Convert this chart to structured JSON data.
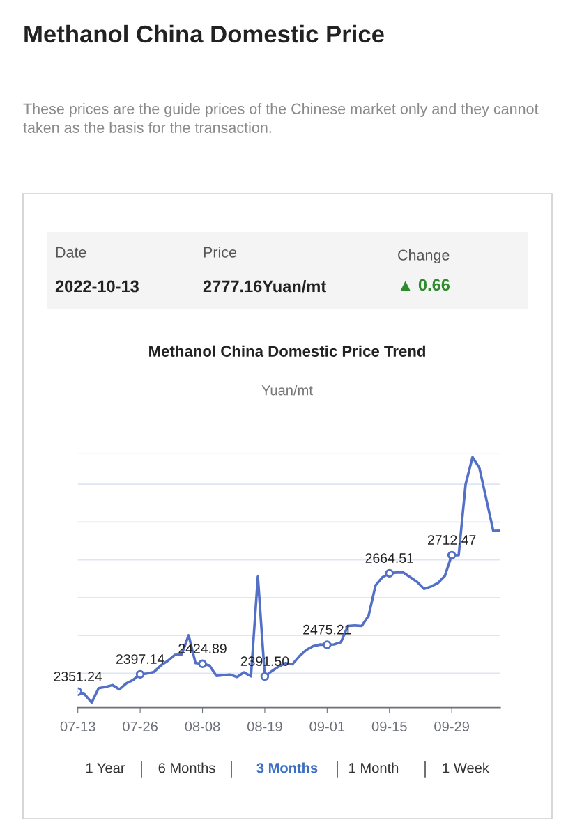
{
  "chart_data": {
    "type": "line",
    "title": "Methanol China Domestic Price",
    "subtitle": "These prices are the guide prices of the Chinese market only and they cannot taken as the basis for the transaction.",
    "ylabel": "Yuan/mt",
    "annotations": [
      "Date",
      "Price",
      "Change",
      "2022-10-13",
      "2777.16Yuan/mt",
      "▲ 0.66",
      "Methanol China Domestic Price Trend",
      "1 Year",
      "6 Months",
      "3 Months",
      "1 Month",
      "1 Week"
    ],
    "categories": [
      "07-13",
      null,
      null,
      null,
      null,
      null,
      null,
      null,
      null,
      "07-26",
      null,
      null,
      null,
      null,
      null,
      null,
      null,
      null,
      "08-08",
      null,
      null,
      null,
      null,
      null,
      null,
      null,
      null,
      "08-19",
      null,
      null,
      null,
      null,
      null,
      null,
      null,
      null,
      "09-01",
      null,
      null,
      null,
      null,
      null,
      null,
      null,
      null,
      "09-15",
      null,
      null,
      null,
      null,
      null,
      null,
      null,
      null,
      "09-29",
      null,
      null,
      null,
      null,
      null,
      null,
      null
    ],
    "series": [
      {
        "color": "#5470c6",
        "values": [
          2351.24,
          2343.9,
          2322.5,
          2360.5,
          2363.6,
          2368.6,
          2357.5,
          2373.4,
          2382.6,
          2397.14,
          2399.2,
          2403.6,
          2420.7,
          2433.1,
          2448.4,
          2449.6,
          2500.5,
          2426.8,
          2424.89,
          2420.7,
          2393.1,
          2394.9,
          2396.2,
          2390.0,
          2402.3,
          2391.8,
          2656.0,
          2391.5,
          2405.4,
          2417.6,
          2426.8,
          2423.8,
          2445.2,
          2461.8,
          2471.7,
          2476.0,
          2475.21,
          2476.2,
          2482.1,
          2525.2,
          2526.3,
          2525.2,
          2552.8,
          2632.7,
          2654.2,
          2664.51,
          2666.4,
          2666.4,
          2654.2,
          2641.9,
          2623.4,
          2629.5,
          2638.7,
          2657.2,
          2712.47,
          2712.5,
          2899.9,
          2971.8,
          2943.0,
          2860.0,
          2776.5,
          2777.16
        ],
        "value_labels": [
          "2351.24",
          null,
          null,
          null,
          null,
          null,
          null,
          null,
          null,
          "2397.14",
          null,
          null,
          null,
          null,
          null,
          null,
          null,
          null,
          "2424.89",
          null,
          null,
          null,
          null,
          null,
          null,
          null,
          null,
          "2391.50",
          null,
          null,
          null,
          null,
          null,
          null,
          null,
          null,
          "2475.21",
          null,
          null,
          null,
          null,
          null,
          null,
          null,
          null,
          "2664.51",
          null,
          null,
          null,
          null,
          null,
          null,
          null,
          null,
          "2712.47",
          null,
          null,
          null,
          null,
          null,
          null,
          null
        ]
      }
    ],
    "ylim": [
      2309,
      2982
    ],
    "yticks": [
      {
        "value": 2400,
        "label": null
      },
      {
        "value": 2500,
        "label": null
      },
      {
        "value": 2600,
        "label": null
      },
      {
        "value": 2700,
        "label": null
      },
      {
        "value": 2800,
        "label": null
      },
      {
        "value": 2900,
        "label": null
      },
      {
        "value": 2982,
        "label": null
      }
    ],
    "grid": "y",
    "tick_labels": "x",
    "line_style": "solid",
    "legend": false
  }
}
